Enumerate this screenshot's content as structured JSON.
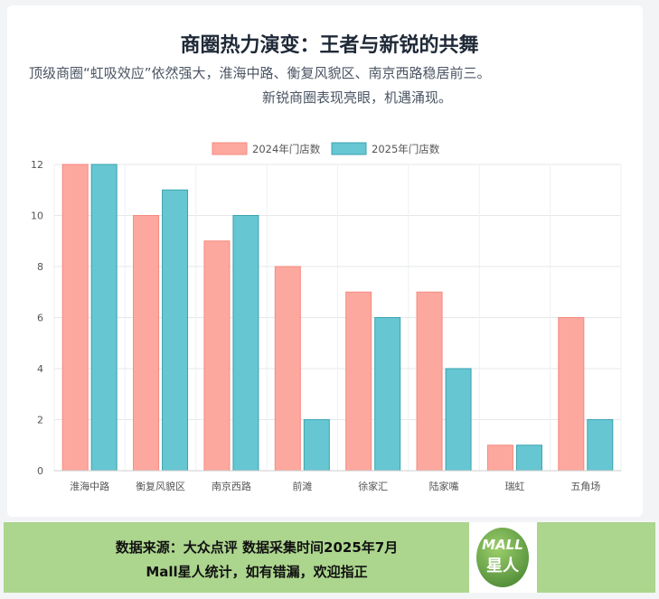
{
  "header": {
    "title": "商圈热力演变：王者与新锐的共舞",
    "subtitle_line1": "顶级商圈“虹吸效应”依然强大，淮海中路、衡复风貌区、南京西路稳居前三。",
    "subtitle_line2": "新锐商圈表现亮眼，机遇涌现。"
  },
  "chart_data": {
    "type": "bar",
    "title": "",
    "xlabel": "",
    "ylabel": "",
    "categories": [
      "淮海中路",
      "衡复风貌区",
      "南京西路",
      "前滩",
      "徐家汇",
      "陆家嘴",
      "瑞虹",
      "五角场"
    ],
    "series": [
      {
        "name": "2024年门店数",
        "values": [
          12,
          10,
          9,
          8,
          7,
          7,
          1,
          6
        ],
        "color": "#fda89e",
        "border": "#f58a80"
      },
      {
        "name": "2025年门店数",
        "values": [
          12,
          11,
          10,
          2,
          6,
          4,
          1,
          2
        ],
        "color": "#66c6d2",
        "border": "#3aa3b0"
      }
    ],
    "ylim": [
      0,
      12
    ],
    "yticks": [
      0,
      2,
      4,
      6,
      8,
      10,
      12
    ],
    "grid": true,
    "legend": "top-center"
  },
  "footer": {
    "line1": "数据来源：大众点评  数据采集时间2025年7月",
    "line2": "Mall星人统计，如有错漏，欢迎指正",
    "logo_text": "MALL 星人"
  }
}
